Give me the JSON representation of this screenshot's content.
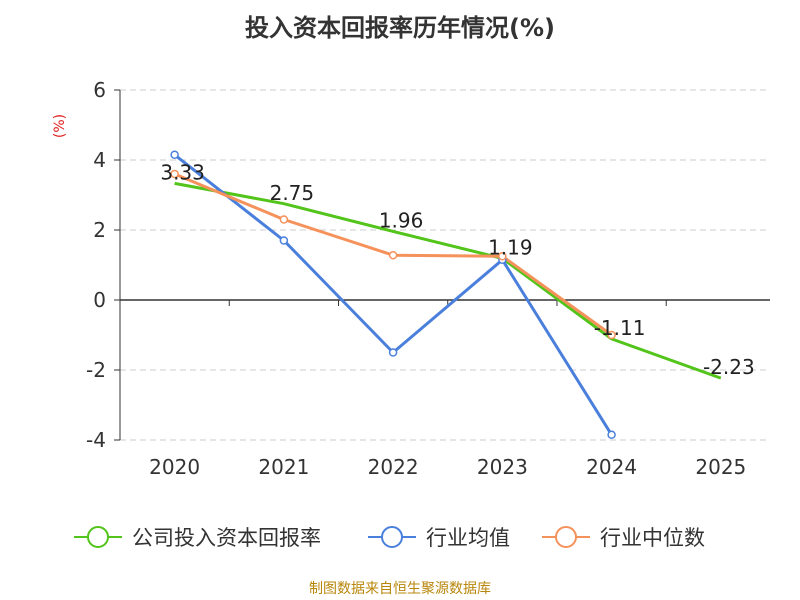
{
  "chart_data": {
    "type": "line",
    "title": "投入资本回报率历年情况(%)",
    "ylabel": "(%)",
    "xlabel": "",
    "categories": [
      "2020",
      "2021",
      "2022",
      "2023",
      "2024",
      "2025"
    ],
    "ylim": [
      -4,
      6
    ],
    "yticks": [
      -4,
      -2,
      0,
      2,
      4,
      6
    ],
    "grid": true,
    "legend_position": "bottom",
    "series": [
      {
        "name": "公司投入资本回报率",
        "color": "#52c41a",
        "values": [
          3.33,
          2.75,
          1.96,
          1.19,
          -1.11,
          -2.23
        ],
        "labels": [
          "3.33",
          "2.75",
          "1.96",
          "1.19",
          "-1.11",
          "-2.23"
        ]
      },
      {
        "name": "行业均值",
        "color": "#4a7fdc",
        "values": [
          4.15,
          1.7,
          -1.5,
          1.15,
          -3.85,
          null
        ]
      },
      {
        "name": "行业中位数",
        "color": "#f5915a",
        "values": [
          3.6,
          2.3,
          1.28,
          1.25,
          -1.0,
          null
        ]
      }
    ]
  },
  "source": "制图数据来自恒生聚源数据库"
}
